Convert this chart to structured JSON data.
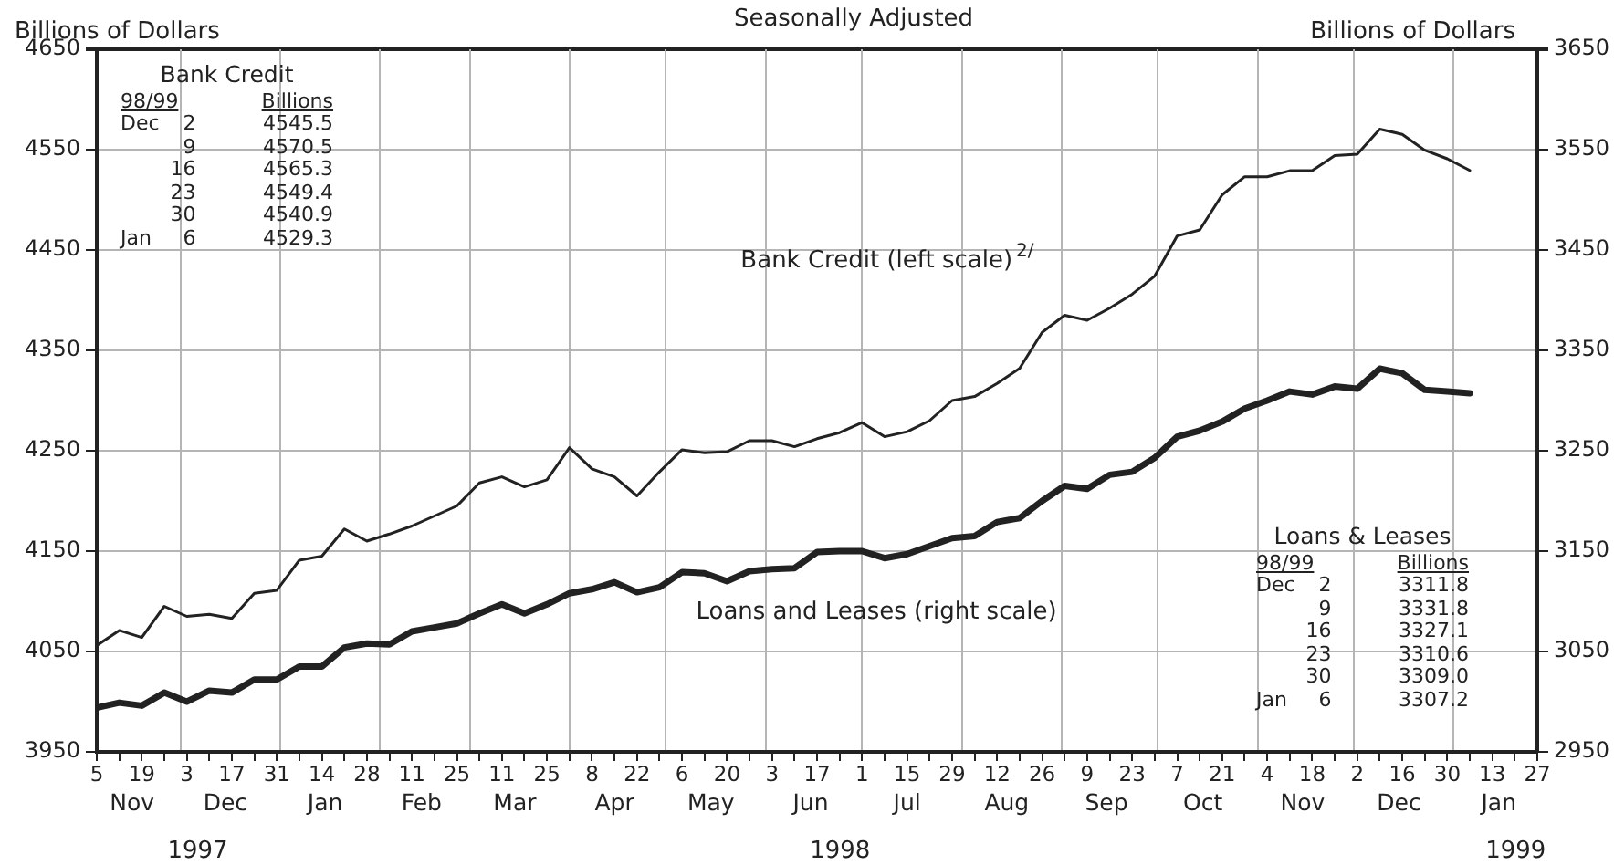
{
  "chart_data": {
    "type": "line",
    "title": "Seasonally Adjusted",
    "ylabel": "Billions of Dollars",
    "y2label": "Billions of Dollars",
    "x": [
      "1997-11-05",
      "1997-11-12",
      "1997-11-19",
      "1997-11-26",
      "1997-12-03",
      "1997-12-10",
      "1997-12-17",
      "1997-12-24",
      "1997-12-31",
      "1998-01-07",
      "1998-01-14",
      "1998-01-21",
      "1998-01-28",
      "1998-02-04",
      "1998-02-11",
      "1998-02-18",
      "1998-02-25",
      "1998-03-04",
      "1998-03-11",
      "1998-03-18",
      "1998-03-25",
      "1998-04-01",
      "1998-04-08",
      "1998-04-15",
      "1998-04-22",
      "1998-04-29",
      "1998-05-06",
      "1998-05-13",
      "1998-05-20",
      "1998-05-27",
      "1998-06-03",
      "1998-06-10",
      "1998-06-17",
      "1998-06-24",
      "1998-07-01",
      "1998-07-08",
      "1998-07-15",
      "1998-07-22",
      "1998-07-29",
      "1998-08-05",
      "1998-08-12",
      "1998-08-19",
      "1998-08-26",
      "1998-09-02",
      "1998-09-09",
      "1998-09-16",
      "1998-09-23",
      "1998-09-30",
      "1998-10-07",
      "1998-10-14",
      "1998-10-21",
      "1998-10-28",
      "1998-11-04",
      "1998-11-11",
      "1998-11-18",
      "1998-11-25",
      "1998-12-02",
      "1998-12-09",
      "1998-12-16",
      "1998-12-23",
      "1998-12-30",
      "1999-01-06"
    ],
    "series": [
      {
        "name": "Bank Credit (left scale)$^{2/}$",
        "color": "#222222",
        "values": [
          4056,
          4071,
          4064,
          4095,
          4085,
          4087,
          4083,
          4108,
          4111,
          4141,
          4145,
          4172,
          4160,
          4167,
          4175,
          4185,
          4195,
          4218,
          4224,
          4214,
          4221,
          4253,
          4232,
          4224,
          4205,
          4229,
          4251,
          4248,
          4249,
          4260,
          4260,
          4254,
          4262,
          4268,
          4278,
          4264,
          4269,
          4280,
          4300,
          4304,
          4317,
          4332,
          4368,
          4385,
          4380,
          4392,
          4406,
          4424,
          4464,
          4470,
          4505,
          4523,
          4523,
          4529,
          4529,
          4544,
          4545.5,
          4570.5,
          4565.3,
          4549.4,
          4540.9,
          4529.3
        ]
      },
      {
        "name": "Loans and Leases (right scale)",
        "color": "#222222",
        "axis": "y2",
        "values": [
          2994,
          2999,
          2996,
          3009,
          3000,
          3011,
          3009,
          3022,
          3022,
          3035,
          3035,
          3054,
          3058,
          3057,
          3070,
          3074,
          3078,
          3088,
          3097,
          3088,
          3097,
          3108,
          3112,
          3119,
          3109,
          3114,
          3129,
          3128,
          3120,
          3130,
          3132,
          3133,
          3149,
          3150,
          3150,
          3143,
          3147,
          3155,
          3163,
          3165,
          3179,
          3183,
          3200,
          3215,
          3212,
          3226,
          3229,
          3243,
          3264,
          3270,
          3279,
          3292,
          3300,
          3309,
          3306,
          3314,
          3311.8,
          3331.8,
          3327.1,
          3310.6,
          3309.0,
          3307.2
        ]
      }
    ],
    "xlim": [
      "1997-11-05",
      "1999-01-27"
    ],
    "xticks": [
      {
        "value": "1997-11-05",
        "label": "5"
      },
      {
        "value": "1997-11-12",
        "label": null
      },
      {
        "value": "1997-11-19",
        "label": "19"
      },
      {
        "value": "1997-11-26",
        "label": null
      },
      {
        "value": "1997-12-03",
        "label": "3"
      },
      {
        "value": "1997-12-10",
        "label": null
      },
      {
        "value": "1997-12-17",
        "label": "17"
      },
      {
        "value": "1997-12-24",
        "label": null
      },
      {
        "value": "1997-12-31",
        "label": "31"
      },
      {
        "value": "1998-01-07",
        "label": null
      },
      {
        "value": "1998-01-14",
        "label": "14"
      },
      {
        "value": "1998-01-21",
        "label": null
      },
      {
        "value": "1998-01-28",
        "label": "28"
      },
      {
        "value": "1998-02-04",
        "label": null
      },
      {
        "value": "1998-02-11",
        "label": "11"
      },
      {
        "value": "1998-02-18",
        "label": null
      },
      {
        "value": "1998-02-25",
        "label": "25"
      },
      {
        "value": "1998-03-04",
        "label": null
      },
      {
        "value": "1998-03-11",
        "label": "11"
      },
      {
        "value": "1998-03-18",
        "label": null
      },
      {
        "value": "1998-03-25",
        "label": "25"
      },
      {
        "value": "1998-04-01",
        "label": null
      },
      {
        "value": "1998-04-08",
        "label": "8"
      },
      {
        "value": "1998-04-15",
        "label": null
      },
      {
        "value": "1998-04-22",
        "label": "22"
      },
      {
        "value": "1998-04-29",
        "label": null
      },
      {
        "value": "1998-05-06",
        "label": "6"
      },
      {
        "value": "1998-05-13",
        "label": null
      },
      {
        "value": "1998-05-20",
        "label": "20"
      },
      {
        "value": "1998-05-27",
        "label": null
      },
      {
        "value": "1998-06-03",
        "label": "3"
      },
      {
        "value": "1998-06-10",
        "label": null
      },
      {
        "value": "1998-06-17",
        "label": "17"
      },
      {
        "value": "1998-06-24",
        "label": null
      },
      {
        "value": "1998-07-01",
        "label": "1"
      },
      {
        "value": "1998-07-08",
        "label": null
      },
      {
        "value": "1998-07-15",
        "label": "15"
      },
      {
        "value": "1998-07-22",
        "label": null
      },
      {
        "value": "1998-07-29",
        "label": "29"
      },
      {
        "value": "1998-08-05",
        "label": null
      },
      {
        "value": "1998-08-12",
        "label": "12"
      },
      {
        "value": "1998-08-19",
        "label": null
      },
      {
        "value": "1998-08-26",
        "label": "26"
      },
      {
        "value": "1998-09-02",
        "label": null
      },
      {
        "value": "1998-09-09",
        "label": "9"
      },
      {
        "value": "1998-09-16",
        "label": null
      },
      {
        "value": "1998-09-23",
        "label": "23"
      },
      {
        "value": "1998-09-30",
        "label": null
      },
      {
        "value": "1998-10-07",
        "label": "7"
      },
      {
        "value": "1998-10-14",
        "label": null
      },
      {
        "value": "1998-10-21",
        "label": "21"
      },
      {
        "value": "1998-10-28",
        "label": null
      },
      {
        "value": "1998-11-04",
        "label": "4"
      },
      {
        "value": "1998-11-11",
        "label": null
      },
      {
        "value": "1998-11-18",
        "label": "18"
      },
      {
        "value": "1998-11-25",
        "label": null
      },
      {
        "value": "1998-12-02",
        "label": "2"
      },
      {
        "value": "1998-12-09",
        "label": null
      },
      {
        "value": "1998-12-16",
        "label": "16"
      },
      {
        "value": "1998-12-23",
        "label": null
      },
      {
        "value": "1998-12-30",
        "label": "30"
      },
      {
        "value": "1999-01-06",
        "label": null
      },
      {
        "value": "1999-01-13",
        "label": "13"
      },
      {
        "value": "1999-01-20",
        "label": null
      },
      {
        "value": "1999-01-27",
        "label": "27"
      }
    ],
    "x2lim": [
      "1997-11-05",
      "1999-01-27"
    ],
    "x2ticks": [
      {
        "value": "1997-11-16",
        "label": "Nov"
      },
      {
        "value": "1997-12-01",
        "label": null
      },
      {
        "value": "1997-12-15",
        "label": "Dec"
      },
      {
        "value": "1998-01-01",
        "label": null
      },
      {
        "value": "1998-01-15",
        "label": "Jan"
      },
      {
        "value": "1998-02-01",
        "label": null
      },
      {
        "value": "1998-02-14",
        "label": "Feb"
      },
      {
        "value": "1998-03-01",
        "label": null
      },
      {
        "value": "1998-03-15",
        "label": "Mar"
      },
      {
        "value": "1998-04-01",
        "label": null
      },
      {
        "value": "1998-04-15",
        "label": "Apr"
      },
      {
        "value": "1998-05-01",
        "label": null
      },
      {
        "value": "1998-05-15",
        "label": "May"
      },
      {
        "value": "1998-06-01",
        "label": null
      },
      {
        "value": "1998-06-15",
        "label": "Jun"
      },
      {
        "value": "1998-07-01",
        "label": null
      },
      {
        "value": "1998-07-15",
        "label": "Jul"
      },
      {
        "value": "1998-08-01",
        "label": null
      },
      {
        "value": "1998-08-15",
        "label": "Aug"
      },
      {
        "value": "1998-09-01",
        "label": null
      },
      {
        "value": "1998-09-15",
        "label": "Sep"
      },
      {
        "value": "1998-10-01",
        "label": null
      },
      {
        "value": "1998-10-15",
        "label": "Oct"
      },
      {
        "value": "1998-11-01",
        "label": null
      },
      {
        "value": "1998-11-15",
        "label": "Nov"
      },
      {
        "value": "1998-12-01",
        "label": null
      },
      {
        "value": "1998-12-15",
        "label": "Dec"
      },
      {
        "value": "1999-01-01",
        "label": null
      },
      {
        "value": "1999-01-15",
        "label": "Jan"
      }
    ],
    "ylim": [
      3950,
      4650
    ],
    "yticks": [
      3950,
      4050,
      4150,
      4250,
      4350,
      4450,
      4550,
      4650
    ],
    "y2lim": [
      2950,
      3650
    ],
    "y2ticks": [
      2950,
      3050,
      3150,
      3250,
      3350,
      3450,
      3550,
      3650
    ],
    "grid": true,
    "legend": false,
    "marker": "none",
    "line_style": "solid",
    "annotations": [
      "Bank Credit",
      "98/99",
      "Billions",
      "Dec 2 4545.5",
      "9 4570.5",
      "16 4565.3",
      "23 4549.4",
      "30 4540.9",
      "Jan 6 4529.3",
      "Loans & Leases",
      "98/99",
      "Billions",
      "Dec 2 3311.8",
      "9 3331.8",
      "16 3327.1",
      "23 3310.6",
      "30 3309.0",
      "Jan 6 3307.2",
      "1997",
      "1998",
      "1999"
    ]
  }
}
